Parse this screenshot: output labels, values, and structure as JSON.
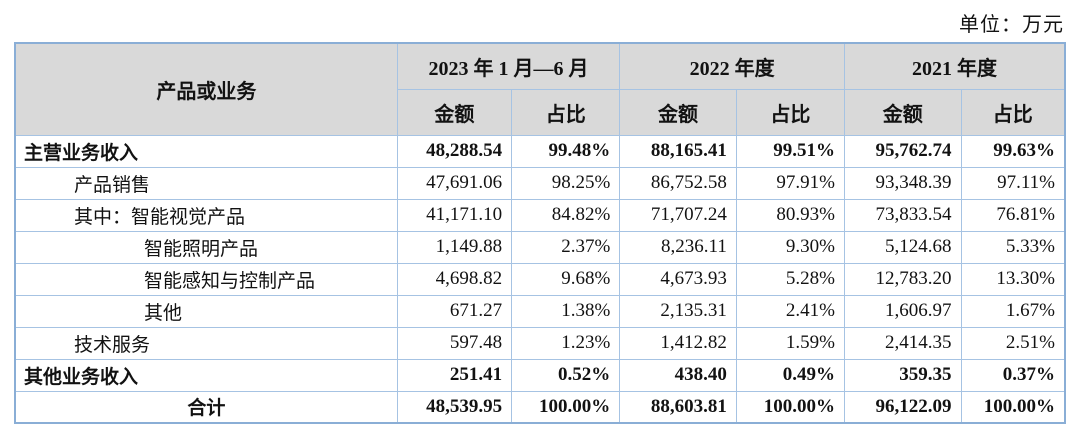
{
  "unit_label": "单位：万元",
  "table": {
    "header": {
      "row_col_label": "产品或业务",
      "period_groups": [
        {
          "label": "2023 年 1 月—6 月"
        },
        {
          "label": "2022 年度"
        },
        {
          "label": "2021 年度"
        }
      ],
      "sub_headers": [
        "金额",
        "占比",
        "金额",
        "占比",
        "金额",
        "占比"
      ]
    },
    "rows": [
      {
        "label": "主营业务收入",
        "indent": 0,
        "bold": true,
        "align": "left",
        "cells": [
          "48,288.54",
          "99.48%",
          "88,165.41",
          "99.51%",
          "95,762.74",
          "99.63%"
        ]
      },
      {
        "label": "产品销售",
        "indent": 1,
        "bold": false,
        "align": "left",
        "cells": [
          "47,691.06",
          "98.25%",
          "86,752.58",
          "97.91%",
          "93,348.39",
          "97.11%"
        ]
      },
      {
        "label": "其中：智能视觉产品",
        "indent": 1,
        "bold": false,
        "align": "left",
        "cells": [
          "41,171.10",
          "84.82%",
          "71,707.24",
          "80.93%",
          "73,833.54",
          "76.81%"
        ]
      },
      {
        "label": "智能照明产品",
        "indent": 2,
        "bold": false,
        "align": "left",
        "cells": [
          "1,149.88",
          "2.37%",
          "8,236.11",
          "9.30%",
          "5,124.68",
          "5.33%"
        ]
      },
      {
        "label": "智能感知与控制产品",
        "indent": 2,
        "bold": false,
        "align": "left",
        "cells": [
          "4,698.82",
          "9.68%",
          "4,673.93",
          "5.28%",
          "12,783.20",
          "13.30%"
        ]
      },
      {
        "label": "其他",
        "indent": 2,
        "bold": false,
        "align": "left",
        "cells": [
          "671.27",
          "1.38%",
          "2,135.31",
          "2.41%",
          "1,606.97",
          "1.67%"
        ]
      },
      {
        "label": "技术服务",
        "indent": 1,
        "bold": false,
        "align": "left",
        "cells": [
          "597.48",
          "1.23%",
          "1,412.82",
          "1.59%",
          "2,414.35",
          "2.51%"
        ]
      },
      {
        "label": "其他业务收入",
        "indent": 0,
        "bold": true,
        "align": "left",
        "cells": [
          "251.41",
          "0.52%",
          "438.40",
          "0.49%",
          "359.35",
          "0.37%"
        ]
      },
      {
        "label": "合计",
        "indent": 0,
        "bold": true,
        "align": "center",
        "cells": [
          "48,539.95",
          "100.00%",
          "88,603.81",
          "100.00%",
          "96,122.09",
          "100.00%"
        ]
      }
    ]
  },
  "colors": {
    "border_inner": "#a6c3e3",
    "border_outer": "#8aaed6",
    "header_bg": "#d9d9d9",
    "text": "#121212"
  }
}
